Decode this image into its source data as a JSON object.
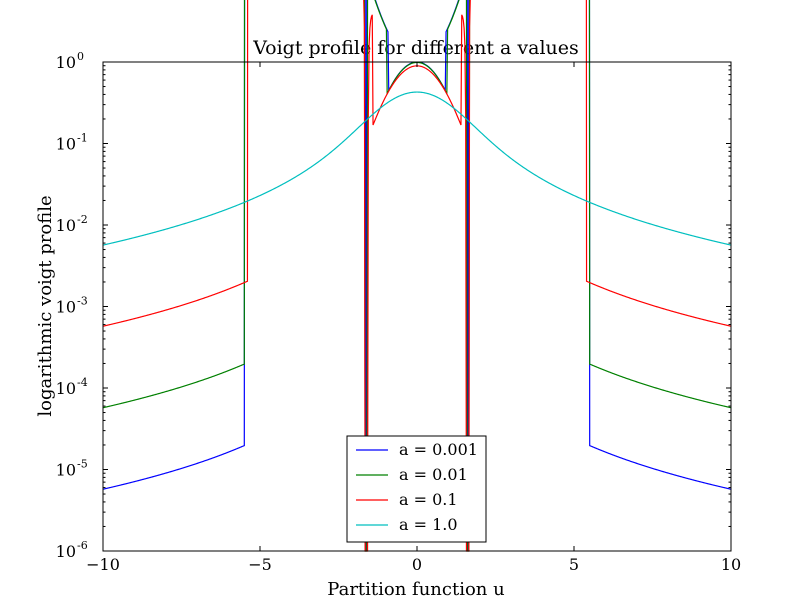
{
  "chart_data": {
    "type": "line",
    "title": "Voigt profile for different a values",
    "xlabel": "Partition function u",
    "ylabel": "logarithmic voigt profile",
    "xlim": [
      -10,
      10
    ],
    "ylim": [
      1e-06,
      1
    ],
    "yscale": "log",
    "grid": false,
    "legend_position": "lower-center",
    "x_ticks": [
      -10,
      -5,
      0,
      5,
      10
    ],
    "x_tick_labels": [
      "−10",
      "−5",
      "0",
      "5",
      "10"
    ],
    "y_ticks": [
      {
        "value": 1e-06,
        "base": "10",
        "exp": "-6"
      },
      {
        "value": 1e-05,
        "base": "10",
        "exp": "-5"
      },
      {
        "value": 0.0001,
        "base": "10",
        "exp": "-4"
      },
      {
        "value": 0.001,
        "base": "10",
        "exp": "-3"
      },
      {
        "value": 0.01,
        "base": "10",
        "exp": "-2"
      },
      {
        "value": 0.1,
        "base": "10",
        "exp": "-1"
      },
      {
        "value": 1,
        "base": "10",
        "exp": "0"
      }
    ],
    "series": [
      {
        "name": "a = 0.001",
        "a": 0.001,
        "color": "#0000ff"
      },
      {
        "name": "a = 0.01",
        "a": 0.01,
        "color": "#008000"
      },
      {
        "name": "a = 0.1",
        "a": 0.1,
        "color": "#ff0000"
      },
      {
        "name": "a = 1.0",
        "a": 1.0,
        "color": "#00bfbf"
      }
    ]
  }
}
